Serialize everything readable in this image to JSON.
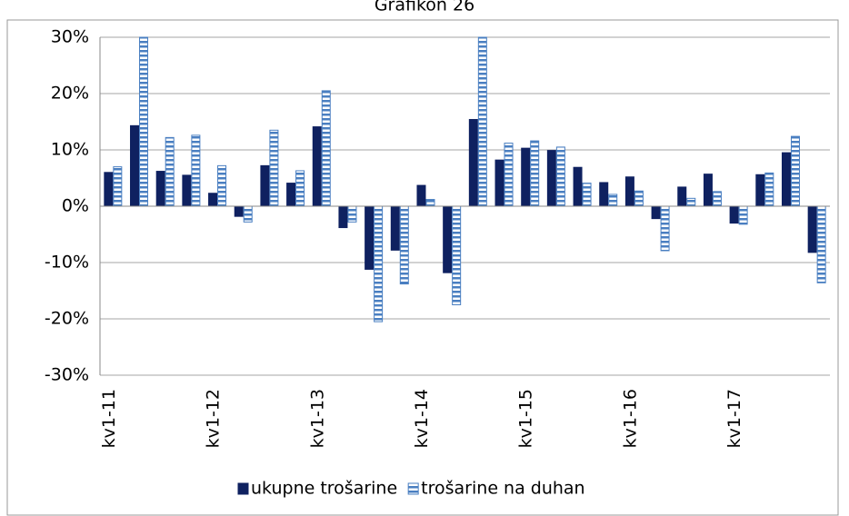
{
  "chart_data": {
    "type": "bar",
    "title": "Grafikon 26",
    "categories": [
      "kv1-11",
      null,
      null,
      null,
      "kv1-12",
      null,
      null,
      null,
      "kv1-13",
      null,
      null,
      null,
      "kv1-14",
      null,
      null,
      null,
      "kv1-15",
      null,
      null,
      null,
      "kv1-16",
      null,
      null,
      null,
      "kv1-17",
      null,
      null,
      null
    ],
    "series": [
      {
        "name": "ukupne trošarine",
        "color": "#0f2160",
        "pattern": "solid",
        "values": [
          6,
          14.3,
          6.2,
          5.5,
          2.3,
          -1.8,
          7.2,
          4.1,
          14.1,
          -3.8,
          -11.2,
          -7.8,
          3.7,
          -11.8,
          15.4,
          8.2,
          10.3,
          9.9,
          6.9,
          4.2,
          5.2,
          -2.2,
          3.4,
          5.7,
          -3,
          5.6,
          9.5,
          -8.2
        ]
      },
      {
        "name": "trošarine na duhan",
        "color": "#4a7fc1",
        "pattern": "stripes",
        "values": [
          7,
          30,
          12.2,
          12.6,
          7.2,
          -2.8,
          13.5,
          6.3,
          20.5,
          -2.8,
          -20.5,
          -13.8,
          1.2,
          -17.5,
          30,
          11.2,
          11.6,
          10.5,
          4.1,
          2.1,
          2.7,
          -7.9,
          1.4,
          2.6,
          -3.2,
          5.9,
          12.4,
          -13.6
        ]
      }
    ],
    "ylim": [
      -30,
      30
    ],
    "yticks": [
      {
        "value": -30,
        "label": "-30%"
      },
      {
        "value": -20,
        "label": "-20%"
      },
      {
        "value": -10,
        "label": "-10%"
      },
      {
        "value": 0,
        "label": "0%"
      },
      {
        "value": 10,
        "label": "10%"
      },
      {
        "value": 20,
        "label": "20%"
      },
      {
        "value": 30,
        "label": "30%"
      }
    ],
    "grid": true,
    "legend": "bottom"
  }
}
